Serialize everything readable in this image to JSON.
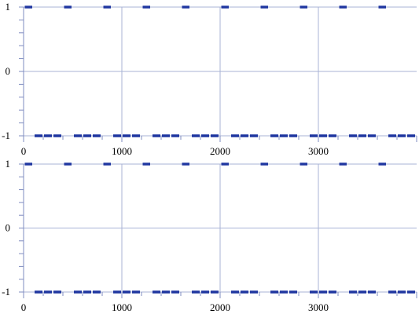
{
  "chart_data": [
    {
      "type": "line",
      "title": "",
      "xlabel": "",
      "ylabel": "",
      "xlim": [
        0,
        4000
      ],
      "ylim": [
        -1,
        1
      ],
      "x_ticks": [
        0,
        1000,
        2000,
        3000
      ],
      "x_tick_labels": [
        "0",
        "1000",
        "2000",
        "3000"
      ],
      "y_ticks": [
        -1,
        0,
        1
      ],
      "y_tick_labels": [
        "-1",
        "0",
        "1"
      ],
      "grid": true,
      "series": [
        {
          "style": "dashed",
          "segments": [
            {
              "y": 1,
              "x": [
                0,
                100
              ]
            },
            {
              "y": 1,
              "x": [
                400,
                500
              ]
            },
            {
              "y": 1,
              "x": [
                800,
                900
              ]
            },
            {
              "y": 1,
              "x": [
                1200,
                1300
              ]
            },
            {
              "y": 1,
              "x": [
                1600,
                1700
              ]
            },
            {
              "y": 1,
              "x": [
                2000,
                2100
              ]
            },
            {
              "y": 1,
              "x": [
                2400,
                2500
              ]
            },
            {
              "y": 1,
              "x": [
                2800,
                2900
              ]
            },
            {
              "y": 1,
              "x": [
                3200,
                3300
              ]
            },
            {
              "y": 1,
              "x": [
                3600,
                3700
              ]
            },
            {
              "y": -1,
              "x": [
                100,
                400
              ]
            },
            {
              "y": -1,
              "x": [
                500,
                800
              ]
            },
            {
              "y": -1,
              "x": [
                900,
                1200
              ]
            },
            {
              "y": -1,
              "x": [
                1300,
                1600
              ]
            },
            {
              "y": -1,
              "x": [
                1700,
                2000
              ]
            },
            {
              "y": -1,
              "x": [
                2100,
                2400
              ]
            },
            {
              "y": -1,
              "x": [
                2500,
                2800
              ]
            },
            {
              "y": -1,
              "x": [
                2900,
                3200
              ]
            },
            {
              "y": -1,
              "x": [
                3300,
                3600
              ]
            },
            {
              "y": -1,
              "x": [
                3700,
                4000
              ]
            }
          ]
        }
      ]
    },
    {
      "type": "line",
      "title": "",
      "xlabel": "",
      "ylabel": "",
      "xlim": [
        0,
        4000
      ],
      "ylim": [
        -1,
        1
      ],
      "x_ticks": [
        0,
        1000,
        2000,
        3000
      ],
      "x_tick_labels": [
        "0",
        "1000",
        "2000",
        "3000"
      ],
      "y_ticks": [
        -1,
        0,
        1
      ],
      "y_tick_labels": [
        "-1",
        "0",
        "1"
      ],
      "grid": true,
      "series": [
        {
          "style": "dashed",
          "segments": [
            {
              "y": 1,
              "x": [
                0,
                100
              ]
            },
            {
              "y": 1,
              "x": [
                400,
                500
              ]
            },
            {
              "y": 1,
              "x": [
                800,
                900
              ]
            },
            {
              "y": 1,
              "x": [
                1200,
                1300
              ]
            },
            {
              "y": 1,
              "x": [
                1600,
                1700
              ]
            },
            {
              "y": 1,
              "x": [
                2000,
                2100
              ]
            },
            {
              "y": 1,
              "x": [
                2400,
                2500
              ]
            },
            {
              "y": 1,
              "x": [
                2800,
                2900
              ]
            },
            {
              "y": 1,
              "x": [
                3200,
                3300
              ]
            },
            {
              "y": 1,
              "x": [
                3600,
                3700
              ]
            },
            {
              "y": -1,
              "x": [
                100,
                400
              ]
            },
            {
              "y": -1,
              "x": [
                500,
                800
              ]
            },
            {
              "y": -1,
              "x": [
                900,
                1200
              ]
            },
            {
              "y": -1,
              "x": [
                1300,
                1600
              ]
            },
            {
              "y": -1,
              "x": [
                1700,
                2000
              ]
            },
            {
              "y": -1,
              "x": [
                2100,
                2400
              ]
            },
            {
              "y": -1,
              "x": [
                2500,
                2800
              ]
            },
            {
              "y": -1,
              "x": [
                2900,
                3200
              ]
            },
            {
              "y": -1,
              "x": [
                3300,
                3600
              ]
            },
            {
              "y": -1,
              "x": [
                3700,
                4000
              ]
            }
          ]
        }
      ]
    }
  ],
  "colors": {
    "series": "#1f36a0",
    "grid": "#a9b3d6",
    "axis": "#7f8cc0"
  }
}
